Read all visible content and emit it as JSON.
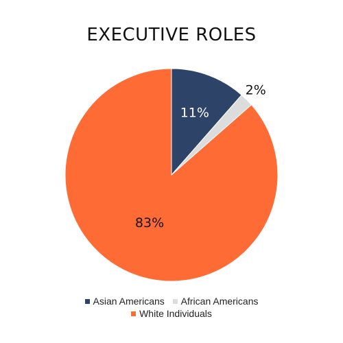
{
  "chart_data": {
    "type": "pie",
    "title": "EXECUTIVE ROLES",
    "series": [
      {
        "name": "Asian Americans",
        "value": 11,
        "label": "11%",
        "color": "#2e4368",
        "label_color": "#ffffff"
      },
      {
        "name": "African Americans",
        "value": 2,
        "label": "2%",
        "color": "#dcdcdc",
        "label_color": "#111111"
      },
      {
        "name": "White Individuals",
        "value": 83,
        "label": "83%",
        "color": "#ff6b35",
        "label_color": "#111111"
      }
    ],
    "legend_position": "bottom"
  }
}
